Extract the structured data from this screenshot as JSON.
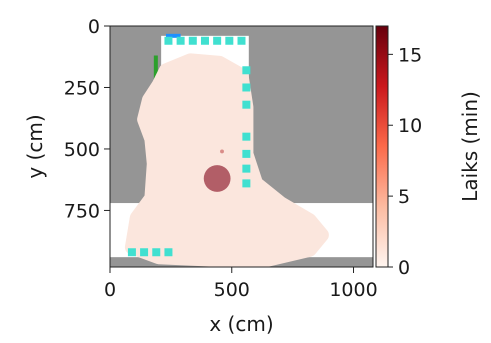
{
  "chart_data": {
    "type": "heatmap",
    "title": "",
    "xlabel": "x (cm)",
    "ylabel": "y (cm)",
    "xlim": [
      0,
      1080
    ],
    "ylim": [
      980,
      0
    ],
    "x_ticks": [
      0,
      500,
      1000
    ],
    "y_ticks": [
      0,
      250,
      500,
      750
    ],
    "colorbar": {
      "label": "Laiks (min)",
      "range": [
        0,
        17
      ],
      "ticks": [
        0,
        5,
        10,
        15
      ],
      "colormap": "Reds"
    },
    "region": {
      "floor_color": "#ffffff",
      "wall_color": "#959595",
      "corridor_x_range": [
        210,
        570
      ],
      "corridor_y_range": [
        40,
        720
      ],
      "hall_x_range": [
        0,
        1080
      ],
      "hall_y_range": [
        720,
        940
      ]
    },
    "heat_blob_color": "#fbe6dd",
    "hotspots": [
      {
        "x": 440,
        "y": 620,
        "r": 55,
        "color": "#b25e67"
      },
      {
        "x": 460,
        "y": 510,
        "r": 8,
        "color": "#d98c88"
      }
    ],
    "markers_top": {
      "y": 60,
      "x": [
        240,
        290,
        340,
        390,
        440,
        490,
        540
      ],
      "color": "#40e0d0"
    },
    "markers_bottom": {
      "y": 920,
      "x": [
        90,
        140,
        190,
        240
      ],
      "color": "#40e0d0"
    },
    "markers_right": {
      "x": 560,
      "y": [
        180,
        250,
        320,
        450,
        520,
        580,
        640
      ],
      "color": "#40e0d0"
    },
    "accents": {
      "blue": "#1e90ff",
      "green": "#2ca02c"
    }
  }
}
